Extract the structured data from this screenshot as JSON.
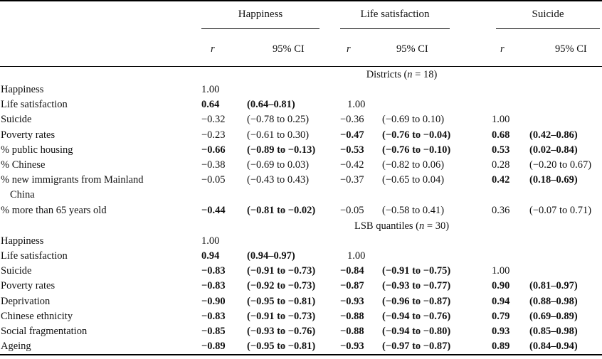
{
  "colors": {
    "text": "#111111",
    "background": "#ffffff",
    "rule": "#000000"
  },
  "table": {
    "groups": [
      "Happiness",
      "Life satisfaction",
      "Suicide"
    ],
    "subheader": {
      "r": "r",
      "ci": "95% CI"
    },
    "sections": [
      {
        "title": {
          "prefix": "Districts (",
          "symbol": "n",
          "suffix": " = 18)"
        },
        "rows": [
          {
            "label": "Happiness",
            "cells": [
              "1.00",
              "",
              "",
              "",
              "",
              ""
            ],
            "bold": [
              false,
              false,
              false,
              false,
              false,
              false
            ]
          },
          {
            "label": "Life satisfaction",
            "cells": [
              "0.64",
              "(0.64–0.81)",
              "1.00",
              "",
              "",
              ""
            ],
            "bold": [
              true,
              true,
              false,
              false,
              false,
              false
            ]
          },
          {
            "label": "Suicide",
            "cells": [
              "−0.32",
              "(−0.78 to 0.25)",
              "−0.36",
              "(−0.69 to 0.10)",
              "1.00",
              ""
            ],
            "bold": [
              false,
              false,
              false,
              false,
              false,
              false
            ]
          },
          {
            "label": "Poverty rates",
            "cells": [
              "−0.23",
              "(−0.61 to 0.30)",
              "−0.47",
              "(−0.76 to −0.04)",
              "0.68",
              "(0.42–0.86)"
            ],
            "bold": [
              false,
              false,
              true,
              true,
              true,
              true
            ]
          },
          {
            "label": "% public housing",
            "cells": [
              "−0.66",
              "(−0.89 to −0.13)",
              "−0.53",
              "(−0.76 to −0.10)",
              "0.53",
              "(0.02–0.84)"
            ],
            "bold": [
              true,
              true,
              true,
              true,
              true,
              true
            ]
          },
          {
            "label": "% Chinese",
            "cells": [
              "−0.38",
              "(−0.69 to 0.03)",
              "−0.42",
              "(−0.82 to 0.06)",
              "0.28",
              "(−0.20 to 0.67)"
            ],
            "bold": [
              false,
              false,
              false,
              false,
              false,
              false
            ]
          },
          {
            "label": "% new immigrants from Mainland",
            "label2": "China",
            "cells": [
              "−0.05",
              "(−0.43 to 0.43)",
              "−0.37",
              "(−0.65 to 0.04)",
              "0.42",
              "(0.18–0.69)"
            ],
            "bold": [
              false,
              false,
              false,
              false,
              true,
              true
            ]
          },
          {
            "label": "% more than 65 years old",
            "cells": [
              "−0.44",
              "(−0.81 to −0.02)",
              "−0.05",
              "(−0.58 to 0.41)",
              "0.36",
              "(−0.07 to 0.71)"
            ],
            "bold": [
              true,
              true,
              false,
              false,
              false,
              false
            ]
          }
        ]
      },
      {
        "title": {
          "prefix": "LSB quantiles (",
          "symbol": "n",
          "suffix": " = 30)"
        },
        "rows": [
          {
            "label": "Happiness",
            "cells": [
              "1.00",
              "",
              "",
              "",
              "",
              ""
            ],
            "bold": [
              false,
              false,
              false,
              false,
              false,
              false
            ]
          },
          {
            "label": "Life satisfaction",
            "cells": [
              "0.94",
              "(0.94–0.97)",
              "1.00",
              "",
              "",
              ""
            ],
            "bold": [
              true,
              true,
              false,
              false,
              false,
              false
            ]
          },
          {
            "label": "Suicide",
            "cells": [
              "−0.83",
              "(−0.91 to −0.73)",
              "−0.84",
              "(−0.91 to −0.75)",
              "1.00",
              ""
            ],
            "bold": [
              true,
              true,
              true,
              true,
              false,
              false
            ]
          },
          {
            "label": "Poverty rates",
            "cells": [
              "−0.83",
              "(−0.92 to −0.73)",
              "−0.87",
              "(−0.93 to −0.77)",
              "0.90",
              "(0.81–0.97)"
            ],
            "bold": [
              true,
              true,
              true,
              true,
              true,
              true
            ]
          },
          {
            "label": "Deprivation",
            "cells": [
              "−0.90",
              "(−0.95 to −0.81)",
              "−0.93",
              "(−0.96 to −0.87)",
              "0.94",
              "(0.88–0.98)"
            ],
            "bold": [
              true,
              true,
              true,
              true,
              true,
              true
            ]
          },
          {
            "label": "Chinese ethnicity",
            "cells": [
              "−0.83",
              "(−0.91 to −0.73)",
              "−0.88",
              "(−0.94 to −0.76)",
              "0.79",
              "(0.69–0.89)"
            ],
            "bold": [
              true,
              true,
              true,
              true,
              true,
              true
            ]
          },
          {
            "label": "Social fragmentation",
            "cells": [
              "−0.85",
              "(−0.93 to −0.76)",
              "−0.88",
              "(−0.94 to −0.80)",
              "0.93",
              "(0.85–0.98)"
            ],
            "bold": [
              true,
              true,
              true,
              true,
              true,
              true
            ]
          },
          {
            "label": "Ageing",
            "cells": [
              "−0.89",
              "(−0.95 to −0.81)",
              "−0.93",
              "(−0.97 to −0.87)",
              "0.89",
              "(0.84–0.94)"
            ],
            "bold": [
              true,
              true,
              true,
              true,
              true,
              true
            ]
          }
        ]
      }
    ]
  }
}
